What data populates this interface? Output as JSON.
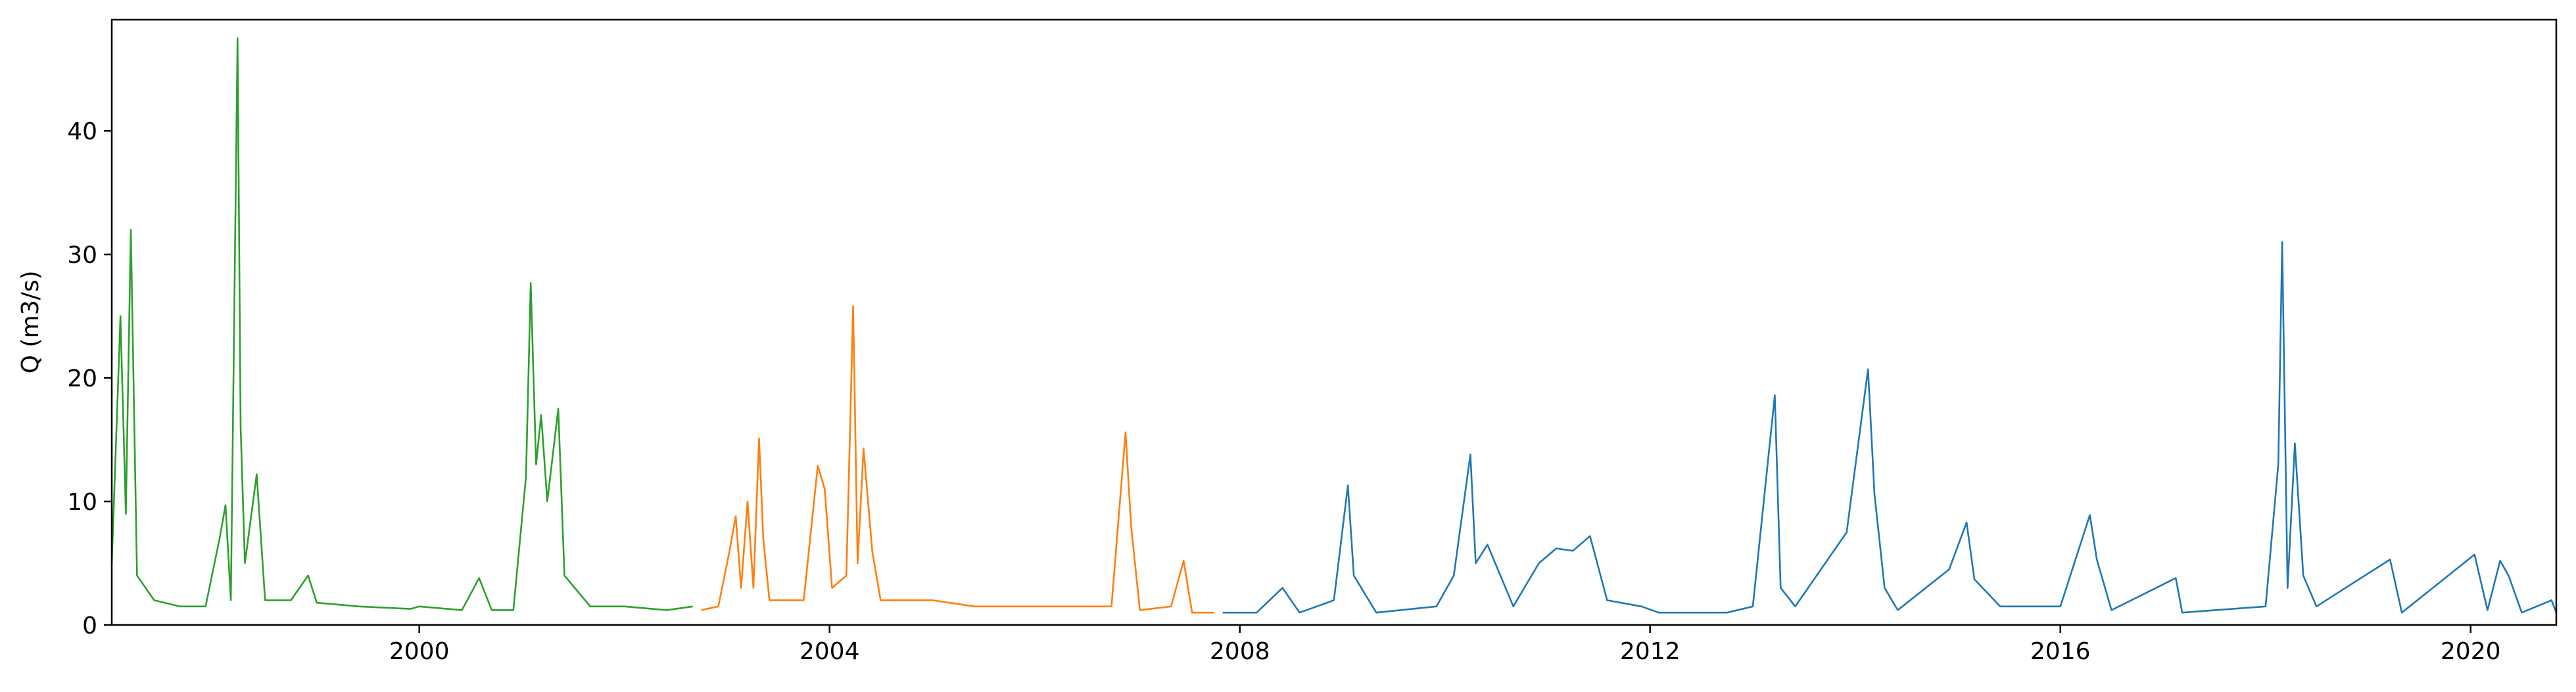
{
  "chart_data": {
    "type": "line",
    "title": "",
    "xlabel": "",
    "ylabel": "Q (m3/s)",
    "xlim": [
      "1997-01-01",
      "2020-11-01"
    ],
    "ylim": [
      0,
      49
    ],
    "x_ticks": [
      "2000",
      "2004",
      "2008",
      "2012",
      "2016",
      "2020"
    ],
    "y_ticks": [
      0,
      10,
      20,
      30,
      40
    ],
    "grid": false,
    "legend": "none",
    "series": [
      {
        "color": "#2ca02c",
        "points": [
          [
            "1997-01-01",
            5
          ],
          [
            "1997-02-01",
            25
          ],
          [
            "1997-02-20",
            9
          ],
          [
            "1997-03-10",
            32
          ],
          [
            "1997-04-01",
            4
          ],
          [
            "1997-06-01",
            2
          ],
          [
            "1997-09-01",
            1.5
          ],
          [
            "1997-12-01",
            1.5
          ],
          [
            "1998-01-20",
            7
          ],
          [
            "1998-02-10",
            9.7
          ],
          [
            "1998-03-01",
            2
          ],
          [
            "1998-03-25",
            47.5
          ],
          [
            "1998-04-05",
            16
          ],
          [
            "1998-04-20",
            5
          ],
          [
            "1998-06-01",
            12.2
          ],
          [
            "1998-07-01",
            2
          ],
          [
            "1998-10-01",
            2
          ],
          [
            "1998-12-01",
            4
          ],
          [
            "1999-01-01",
            1.8
          ],
          [
            "1999-06-01",
            1.5
          ],
          [
            "1999-12-01",
            1.3
          ],
          [
            "2000-01-01",
            1.5
          ],
          [
            "2000-06-01",
            1.2
          ],
          [
            "2000-08-01",
            3.8
          ],
          [
            "2000-09-15",
            1.2
          ],
          [
            "2000-12-01",
            1.2
          ],
          [
            "2001-01-15",
            12
          ],
          [
            "2001-02-01",
            27.7
          ],
          [
            "2001-02-20",
            13
          ],
          [
            "2001-03-10",
            17
          ],
          [
            "2001-04-01",
            10
          ],
          [
            "2001-05-10",
            17.5
          ],
          [
            "2001-06-01",
            4
          ],
          [
            "2001-09-01",
            1.5
          ],
          [
            "2002-01-01",
            1.5
          ],
          [
            "2002-06-01",
            1.2
          ],
          [
            "2002-09-01",
            1.5
          ]
        ]
      },
      {
        "color": "#ff7f0e",
        "points": [
          [
            "2002-10-01",
            1.2
          ],
          [
            "2002-12-01",
            1.5
          ],
          [
            "2003-01-10",
            6
          ],
          [
            "2003-02-01",
            8.8
          ],
          [
            "2003-02-20",
            3
          ],
          [
            "2003-03-15",
            10
          ],
          [
            "2003-04-05",
            3
          ],
          [
            "2003-04-25",
            15.1
          ],
          [
            "2003-05-10",
            7
          ],
          [
            "2003-06-01",
            2
          ],
          [
            "2003-10-01",
            2
          ],
          [
            "2003-11-20",
            12.9
          ],
          [
            "2003-12-15",
            11
          ],
          [
            "2004-01-10",
            3
          ],
          [
            "2004-03-01",
            4
          ],
          [
            "2004-03-25",
            25.8
          ],
          [
            "2004-04-10",
            5
          ],
          [
            "2004-05-01",
            14.3
          ],
          [
            "2004-06-01",
            6
          ],
          [
            "2004-07-01",
            2
          ],
          [
            "2004-10-01",
            2
          ],
          [
            "2005-01-01",
            2
          ],
          [
            "2005-06-01",
            1.5
          ],
          [
            "2006-01-01",
            1.5
          ],
          [
            "2006-06-01",
            1.5
          ],
          [
            "2006-10-01",
            1.5
          ],
          [
            "2006-11-20",
            15.6
          ],
          [
            "2006-12-10",
            8
          ],
          [
            "2007-01-10",
            1.2
          ],
          [
            "2007-05-01",
            1.5
          ],
          [
            "2007-06-15",
            5.2
          ],
          [
            "2007-07-15",
            1
          ],
          [
            "2007-10-01",
            1
          ]
        ]
      },
      {
        "color": "#1f77b4",
        "points": [
          [
            "2007-11-01",
            1
          ],
          [
            "2008-03-01",
            1
          ],
          [
            "2008-06-01",
            3
          ],
          [
            "2008-08-01",
            1
          ],
          [
            "2008-12-01",
            2
          ],
          [
            "2009-01-20",
            11.3
          ],
          [
            "2009-02-10",
            4
          ],
          [
            "2009-05-01",
            1
          ],
          [
            "2009-12-01",
            1.5
          ],
          [
            "2010-02-01",
            4
          ],
          [
            "2010-04-01",
            13.8
          ],
          [
            "2010-04-20",
            5
          ],
          [
            "2010-06-01",
            6.5
          ],
          [
            "2010-09-01",
            1.5
          ],
          [
            "2010-12-01",
            5
          ],
          [
            "2011-02-01",
            6.2
          ],
          [
            "2011-04-01",
            6
          ],
          [
            "2011-06-01",
            7.2
          ],
          [
            "2011-08-01",
            2
          ],
          [
            "2011-12-01",
            1.5
          ],
          [
            "2012-02-01",
            1
          ],
          [
            "2012-10-01",
            1
          ],
          [
            "2013-01-01",
            1.5
          ],
          [
            "2013-03-20",
            18.6
          ],
          [
            "2013-04-10",
            3
          ],
          [
            "2013-06-01",
            1.5
          ],
          [
            "2013-12-01",
            7.5
          ],
          [
            "2014-02-15",
            20.7
          ],
          [
            "2014-03-10",
            10.6
          ],
          [
            "2014-04-15",
            3
          ],
          [
            "2014-06-01",
            1.2
          ],
          [
            "2014-12-01",
            4.5
          ],
          [
            "2015-02-01",
            8.3
          ],
          [
            "2015-03-01",
            3.7
          ],
          [
            "2015-06-01",
            1.5
          ],
          [
            "2016-01-01",
            1.5
          ],
          [
            "2016-04-15",
            8.9
          ],
          [
            "2016-05-10",
            5.3
          ],
          [
            "2016-07-01",
            1.2
          ],
          [
            "2017-02-15",
            3.8
          ],
          [
            "2017-03-10",
            1
          ],
          [
            "2018-01-01",
            1.5
          ],
          [
            "2018-02-15",
            13
          ],
          [
            "2018-03-01",
            31
          ],
          [
            "2018-03-20",
            3
          ],
          [
            "2018-04-15",
            14.7
          ],
          [
            "2018-05-15",
            4
          ],
          [
            "2018-07-01",
            1.5
          ],
          [
            "2019-03-20",
            5.3
          ],
          [
            "2019-05-01",
            1
          ],
          [
            "2020-01-15",
            5.7
          ],
          [
            "2020-03-01",
            1.2
          ],
          [
            "2020-04-15",
            5.2
          ],
          [
            "2020-05-15",
            4
          ],
          [
            "2020-07-01",
            1
          ],
          [
            "2020-10-15",
            2
          ],
          [
            "2020-11-01",
            1
          ]
        ]
      }
    ]
  }
}
